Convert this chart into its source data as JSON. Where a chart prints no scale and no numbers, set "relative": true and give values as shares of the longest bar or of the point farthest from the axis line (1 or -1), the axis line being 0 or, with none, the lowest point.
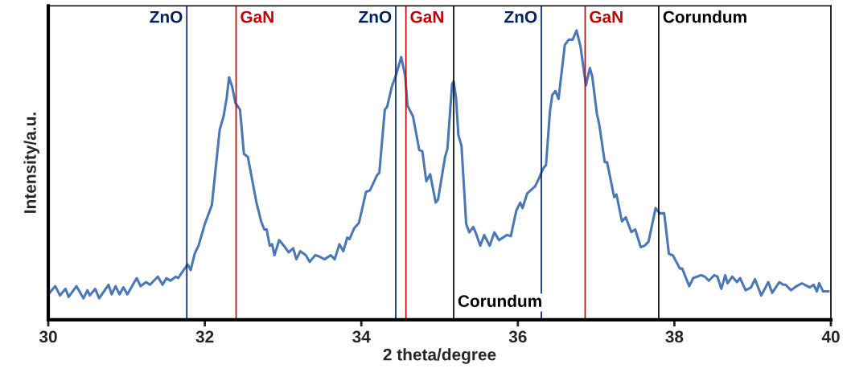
{
  "chart_data": {
    "type": "line",
    "relative": true,
    "xlabel": "2 theta/degree",
    "ylabel": "Intensity/a.u.",
    "xlim": [
      30,
      40
    ],
    "xticks": [
      30,
      32,
      34,
      36,
      38,
      40
    ],
    "grid": false,
    "legend": false,
    "tick_labels": "x",
    "series": [
      {
        "color": "#4a78b5",
        "x": [
          30.0,
          30.09,
          30.15,
          30.22,
          30.26,
          30.36,
          30.45,
          30.5,
          30.53,
          30.6,
          30.65,
          30.77,
          30.81,
          30.86,
          30.91,
          30.96,
          31.01,
          31.13,
          31.18,
          31.25,
          31.3,
          31.4,
          31.46,
          31.51,
          31.56,
          31.63,
          31.66,
          31.73,
          31.78,
          31.82,
          31.87,
          31.92,
          32.0,
          32.09,
          32.14,
          32.19,
          32.24,
          32.28,
          32.31,
          32.35,
          32.39,
          32.45,
          32.5,
          32.55,
          32.66,
          32.72,
          32.76,
          32.79,
          32.83,
          32.86,
          32.89,
          32.95,
          33.01,
          33.07,
          33.13,
          33.17,
          33.22,
          33.29,
          33.34,
          33.41,
          33.46,
          33.53,
          33.61,
          33.66,
          33.72,
          33.77,
          33.82,
          33.85,
          33.91,
          33.97,
          34.06,
          34.11,
          34.2,
          34.23,
          34.3,
          34.33,
          34.39,
          34.45,
          34.51,
          34.56,
          34.59,
          34.66,
          34.74,
          34.78,
          34.83,
          34.88,
          34.95,
          34.98,
          35.07,
          35.1,
          35.16,
          35.18,
          35.21,
          35.24,
          35.28,
          35.34,
          35.38,
          35.43,
          35.46,
          35.52,
          35.57,
          35.64,
          35.7,
          35.76,
          35.86,
          35.91,
          35.98,
          36.03,
          36.06,
          36.12,
          36.22,
          36.27,
          36.32,
          36.36,
          36.41,
          36.44,
          36.48,
          36.52,
          36.6,
          36.65,
          36.7,
          36.75,
          36.8,
          36.87,
          36.92,
          36.95,
          37.01,
          37.04,
          37.11,
          37.14,
          37.23,
          37.26,
          37.33,
          37.38,
          37.45,
          37.5,
          37.57,
          37.62,
          37.67,
          37.76,
          37.81,
          37.87,
          37.93,
          37.98,
          38.07,
          38.1,
          38.19,
          38.24,
          38.34,
          38.39,
          38.44,
          38.51,
          38.55,
          38.6,
          38.65,
          38.68,
          38.74,
          38.8,
          38.84,
          38.91,
          38.98,
          39.03,
          39.11,
          39.2,
          39.25,
          39.34,
          39.39,
          39.42,
          39.49,
          39.56,
          39.63,
          39.73,
          39.78,
          39.82,
          39.85,
          39.9,
          39.97
        ],
        "values": [
          0.088,
          0.116,
          0.084,
          0.107,
          0.079,
          0.116,
          0.074,
          0.102,
          0.084,
          0.107,
          0.074,
          0.121,
          0.088,
          0.116,
          0.088,
          0.112,
          0.088,
          0.144,
          0.116,
          0.13,
          0.121,
          0.149,
          0.121,
          0.144,
          0.135,
          0.149,
          0.144,
          0.172,
          0.191,
          0.172,
          0.228,
          0.256,
          0.331,
          0.396,
          0.526,
          0.656,
          0.703,
          0.768,
          0.838,
          0.805,
          0.75,
          0.726,
          0.573,
          0.563,
          0.405,
          0.34,
          0.312,
          0.312,
          0.256,
          0.261,
          0.223,
          0.275,
          0.256,
          0.233,
          0.247,
          0.209,
          0.237,
          0.223,
          0.2,
          0.223,
          0.219,
          0.209,
          0.223,
          0.209,
          0.261,
          0.237,
          0.284,
          0.279,
          0.317,
          0.335,
          0.442,
          0.447,
          0.499,
          0.508,
          0.726,
          0.736,
          0.806,
          0.852,
          0.908,
          0.843,
          0.74,
          0.703,
          0.587,
          0.582,
          0.479,
          0.503,
          0.405,
          0.415,
          0.563,
          0.591,
          0.815,
          0.824,
          0.768,
          0.638,
          0.601,
          0.331,
          0.302,
          0.321,
          0.302,
          0.256,
          0.293,
          0.256,
          0.302,
          0.275,
          0.293,
          0.289,
          0.377,
          0.405,
          0.386,
          0.437,
          0.461,
          0.489,
          0.521,
          0.535,
          0.721,
          0.777,
          0.791,
          0.763,
          0.95,
          0.968,
          0.968,
          1.0,
          0.945,
          0.81,
          0.87,
          0.842,
          0.712,
          0.675,
          0.545,
          0.545,
          0.424,
          0.433,
          0.34,
          0.354,
          0.303,
          0.312,
          0.251,
          0.256,
          0.27,
          0.386,
          0.368,
          0.368,
          0.228,
          0.223,
          0.177,
          0.177,
          0.116,
          0.144,
          0.154,
          0.149,
          0.135,
          0.154,
          0.149,
          0.107,
          0.154,
          0.126,
          0.149,
          0.13,
          0.144,
          0.102,
          0.112,
          0.14,
          0.084,
          0.13,
          0.093,
          0.13,
          0.121,
          0.121,
          0.102,
          0.116,
          0.126,
          0.112,
          0.121,
          0.098,
          0.126,
          0.098,
          0.098
        ]
      }
    ],
    "ref_lines": [
      {
        "axis": "x",
        "value": 31.77,
        "label": "ZnO",
        "color": "#002060"
      },
      {
        "axis": "x",
        "value": 32.4,
        "label": "GaN",
        "color": "#c00000"
      },
      {
        "axis": "x",
        "value": 34.44,
        "label": "ZnO",
        "color": "#002060"
      },
      {
        "axis": "x",
        "value": 34.57,
        "label": "GaN",
        "color": "#c00000"
      },
      {
        "axis": "x",
        "value": 36.3,
        "label": "ZnO",
        "color": "#002060"
      },
      {
        "axis": "x",
        "value": 36.86,
        "label": "GaN",
        "color": "#c00000"
      },
      {
        "axis": "x",
        "value": 37.8,
        "label": "Corundum",
        "color": "#000000"
      },
      {
        "axis": "x",
        "value": 35.18,
        "label": "Corundum",
        "color": "#000000"
      }
    ]
  }
}
